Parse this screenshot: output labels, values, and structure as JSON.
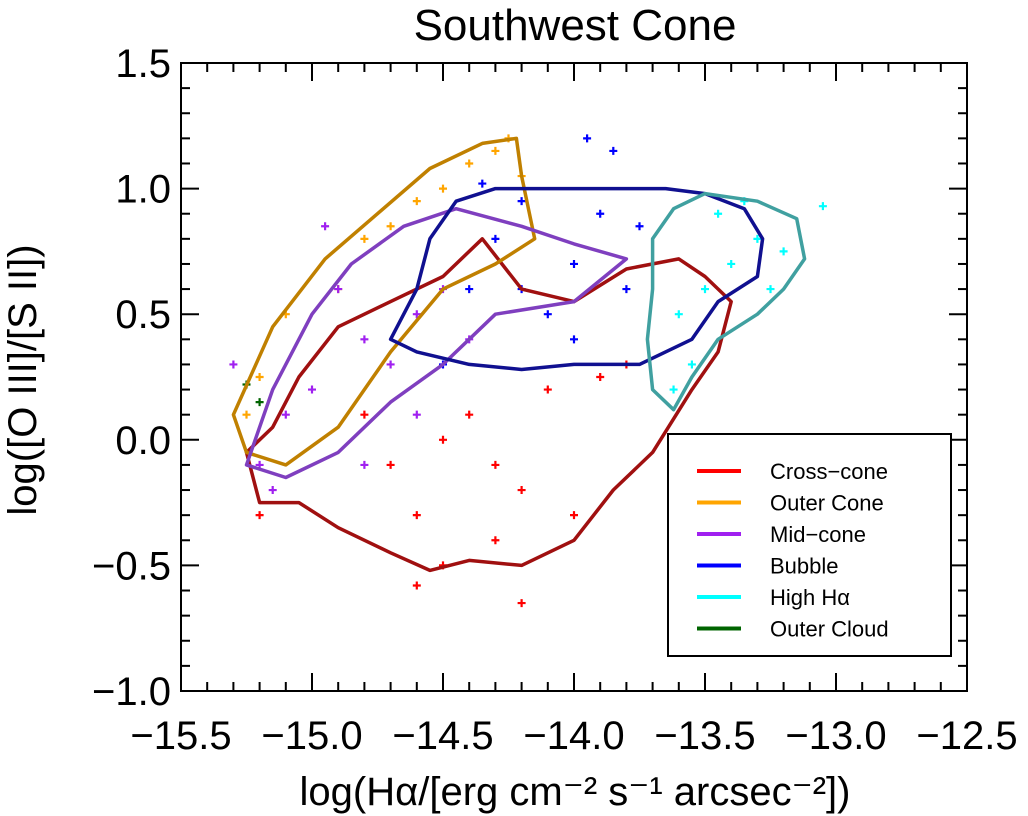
{
  "chart_data": {
    "type": "scatter",
    "title": "Southwest Cone",
    "xlabel": "log(Hα/[erg cm⁻² s⁻¹ arcsec⁻²])",
    "ylabel": "log([O III]/[S II])",
    "xlim": [
      -15.5,
      -12.5
    ],
    "ylim": [
      -1.0,
      1.5
    ],
    "x_ticks": [
      -15.5,
      -15.0,
      -14.5,
      -14.0,
      -13.5,
      -13.0,
      -12.5
    ],
    "x_tick_labels": [
      "−15.5",
      "−15.0",
      "−14.5",
      "−14.0",
      "−13.5",
      "−13.0",
      "−12.5"
    ],
    "y_ticks": [
      -1.0,
      -0.5,
      0.0,
      0.5,
      1.0,
      1.5
    ],
    "y_tick_labels": [
      "−1.0",
      "−0.5",
      "0.0",
      "0.5",
      "1.0",
      "1.5"
    ],
    "marker": "+",
    "grid": false,
    "legend_position": "bottom-right",
    "series": [
      {
        "name": "Cross−cone",
        "color": "#ff0000",
        "contour_color": "#a01010",
        "sample_points": [
          [
            -14.5,
            0.0
          ],
          [
            -14.3,
            -0.1
          ],
          [
            -14.6,
            -0.3
          ],
          [
            -14.1,
            0.2
          ],
          [
            -14.4,
            0.1
          ],
          [
            -14.2,
            -0.2
          ],
          [
            -13.9,
            0.25
          ],
          [
            -14.7,
            -0.1
          ],
          [
            -14.5,
            -0.5
          ],
          [
            -14.8,
            0.1
          ],
          [
            -14.6,
            -0.58
          ],
          [
            -14.2,
            -0.65
          ],
          [
            -15.2,
            -0.3
          ],
          [
            -14.0,
            -0.3
          ],
          [
            -13.8,
            0.3
          ],
          [
            -14.3,
            -0.4
          ]
        ],
        "contour": [
          [
            -15.25,
            -0.05
          ],
          [
            -15.2,
            -0.25
          ],
          [
            -15.05,
            -0.25
          ],
          [
            -14.9,
            -0.35
          ],
          [
            -14.7,
            -0.45
          ],
          [
            -14.55,
            -0.52
          ],
          [
            -14.4,
            -0.48
          ],
          [
            -14.2,
            -0.5
          ],
          [
            -14.0,
            -0.4
          ],
          [
            -13.85,
            -0.2
          ],
          [
            -13.7,
            -0.05
          ],
          [
            -13.55,
            0.2
          ],
          [
            -13.45,
            0.35
          ],
          [
            -13.4,
            0.55
          ],
          [
            -13.5,
            0.65
          ],
          [
            -13.6,
            0.72
          ],
          [
            -13.8,
            0.68
          ],
          [
            -14.0,
            0.55
          ],
          [
            -14.2,
            0.6
          ],
          [
            -14.35,
            0.8
          ],
          [
            -14.5,
            0.65
          ],
          [
            -14.7,
            0.55
          ],
          [
            -14.9,
            0.45
          ],
          [
            -15.05,
            0.25
          ],
          [
            -15.15,
            0.05
          ],
          [
            -15.25,
            -0.05
          ]
        ]
      },
      {
        "name": "Outer Cone",
        "color": "#ffa500",
        "contour_color": "#c08000",
        "sample_points": [
          [
            -14.4,
            1.1
          ],
          [
            -14.6,
            0.95
          ],
          [
            -14.3,
            1.15
          ],
          [
            -14.8,
            0.8
          ],
          [
            -14.5,
            1.0
          ],
          [
            -15.1,
            0.5
          ],
          [
            -14.25,
            1.2
          ],
          [
            -15.2,
            0.25
          ],
          [
            -14.9,
            0.6
          ],
          [
            -14.2,
            1.05
          ],
          [
            -15.25,
            0.1
          ],
          [
            -14.7,
            0.85
          ]
        ],
        "contour": [
          [
            -15.3,
            0.1
          ],
          [
            -15.15,
            0.45
          ],
          [
            -14.95,
            0.72
          ],
          [
            -14.75,
            0.9
          ],
          [
            -14.55,
            1.08
          ],
          [
            -14.35,
            1.18
          ],
          [
            -14.22,
            1.2
          ],
          [
            -14.2,
            1.05
          ],
          [
            -14.15,
            0.8
          ],
          [
            -14.3,
            0.7
          ],
          [
            -14.5,
            0.6
          ],
          [
            -14.7,
            0.35
          ],
          [
            -14.9,
            0.05
          ],
          [
            -15.1,
            -0.1
          ],
          [
            -15.25,
            -0.05
          ],
          [
            -15.3,
            0.1
          ]
        ]
      },
      {
        "name": "Mid−cone",
        "color": "#a020f0",
        "contour_color": "#7f3fbf",
        "sample_points": [
          [
            -14.8,
            0.4
          ],
          [
            -14.6,
            0.5
          ],
          [
            -15.0,
            0.2
          ],
          [
            -14.7,
            0.3
          ],
          [
            -14.9,
            0.6
          ],
          [
            -15.1,
            0.1
          ],
          [
            -14.5,
            0.6
          ],
          [
            -14.6,
            0.1
          ],
          [
            -15.2,
            -0.1
          ],
          [
            -14.8,
            -0.1
          ],
          [
            -15.3,
            0.3
          ],
          [
            -14.4,
            0.4
          ],
          [
            -14.95,
            0.85
          ],
          [
            -15.15,
            -0.2
          ]
        ],
        "contour": [
          [
            -15.25,
            -0.1
          ],
          [
            -15.15,
            0.2
          ],
          [
            -15.0,
            0.5
          ],
          [
            -14.85,
            0.7
          ],
          [
            -14.65,
            0.85
          ],
          [
            -14.45,
            0.92
          ],
          [
            -14.2,
            0.85
          ],
          [
            -14.0,
            0.78
          ],
          [
            -13.8,
            0.72
          ],
          [
            -14.0,
            0.55
          ],
          [
            -14.3,
            0.5
          ],
          [
            -14.5,
            0.3
          ],
          [
            -14.7,
            0.15
          ],
          [
            -14.9,
            -0.05
          ],
          [
            -15.1,
            -0.15
          ],
          [
            -15.25,
            -0.1
          ]
        ]
      },
      {
        "name": "Bubble",
        "color": "#0000ff",
        "contour_color": "#101090",
        "sample_points": [
          [
            -14.2,
            0.6
          ],
          [
            -14.0,
            0.7
          ],
          [
            -14.3,
            0.8
          ],
          [
            -13.9,
            0.9
          ],
          [
            -14.1,
            0.5
          ],
          [
            -13.8,
            0.6
          ],
          [
            -14.4,
            0.6
          ],
          [
            -13.95,
            1.2
          ],
          [
            -14.0,
            0.4
          ],
          [
            -14.5,
            0.3
          ],
          [
            -13.75,
            0.85
          ],
          [
            -14.2,
            0.95
          ],
          [
            -13.85,
            1.15
          ],
          [
            -14.35,
            1.02
          ]
        ],
        "contour": [
          [
            -14.7,
            0.4
          ],
          [
            -14.6,
            0.6
          ],
          [
            -14.55,
            0.8
          ],
          [
            -14.45,
            0.95
          ],
          [
            -14.3,
            1.0
          ],
          [
            -14.0,
            1.0
          ],
          [
            -13.8,
            1.0
          ],
          [
            -13.65,
            1.0
          ],
          [
            -13.5,
            0.98
          ],
          [
            -13.35,
            0.92
          ],
          [
            -13.28,
            0.8
          ],
          [
            -13.3,
            0.65
          ],
          [
            -13.45,
            0.55
          ],
          [
            -13.55,
            0.4
          ],
          [
            -13.75,
            0.3
          ],
          [
            -14.0,
            0.3
          ],
          [
            -14.2,
            0.28
          ],
          [
            -14.4,
            0.3
          ],
          [
            -14.6,
            0.35
          ],
          [
            -14.7,
            0.4
          ]
        ]
      },
      {
        "name": "High Hα",
        "color": "#00ffff",
        "contour_color": "#40a0a0",
        "sample_points": [
          [
            -13.4,
            0.7
          ],
          [
            -13.3,
            0.8
          ],
          [
            -13.5,
            0.6
          ],
          [
            -13.6,
            0.5
          ],
          [
            -13.45,
            0.9
          ],
          [
            -13.2,
            0.75
          ],
          [
            -13.55,
            0.3
          ],
          [
            -13.35,
            0.95
          ],
          [
            -13.05,
            0.93
          ],
          [
            -13.62,
            0.2
          ],
          [
            -13.25,
            0.6
          ]
        ],
        "contour": [
          [
            -13.7,
            0.8
          ],
          [
            -13.62,
            0.92
          ],
          [
            -13.5,
            0.98
          ],
          [
            -13.3,
            0.95
          ],
          [
            -13.15,
            0.88
          ],
          [
            -13.12,
            0.72
          ],
          [
            -13.2,
            0.6
          ],
          [
            -13.3,
            0.5
          ],
          [
            -13.45,
            0.4
          ],
          [
            -13.55,
            0.25
          ],
          [
            -13.62,
            0.12
          ],
          [
            -13.7,
            0.2
          ],
          [
            -13.72,
            0.4
          ],
          [
            -13.7,
            0.6
          ],
          [
            -13.7,
            0.8
          ]
        ]
      },
      {
        "name": "Outer Cloud",
        "color": "#006400",
        "contour_color": "#006400",
        "sample_points": [
          [
            -15.25,
            0.22
          ],
          [
            -15.2,
            0.15
          ]
        ],
        "contour": []
      }
    ]
  }
}
